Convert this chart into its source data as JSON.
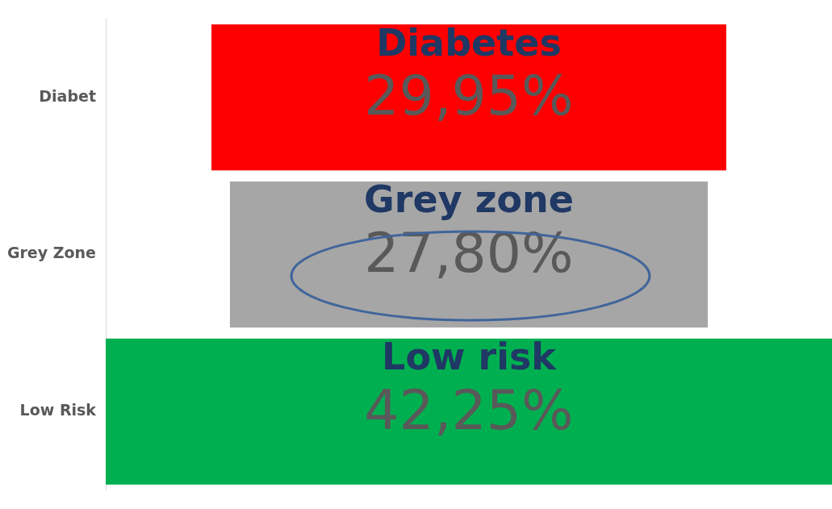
{
  "chart_data": {
    "type": "other",
    "categories": [
      "Diabet",
      "Grey Zone",
      "Low Risk"
    ],
    "values": [
      29.95,
      27.8,
      42.25
    ],
    "colors": [
      "#ff0000",
      "#a6a6a6",
      "#00b050"
    ],
    "value_labels": [
      "29,95%",
      "27,80%",
      "42,25%"
    ],
    "annotations": [
      "Diabetes",
      "Grey zone",
      "Low risk"
    ]
  }
}
